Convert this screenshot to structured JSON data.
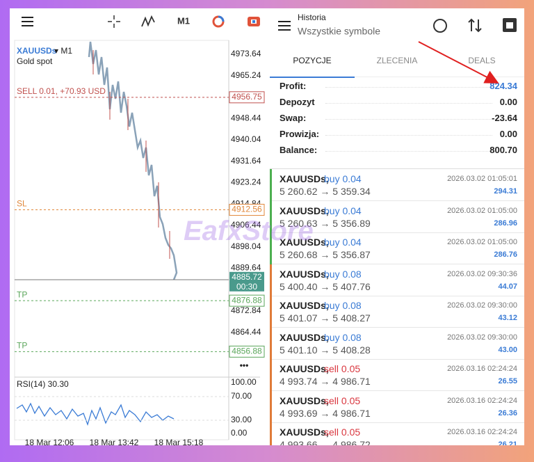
{
  "chart_panel": {
    "toolbar_timeframe": "M1",
    "symbol": "XAUUSDs",
    "timeframe": "▾ M1",
    "description": "Gold spot",
    "price_labels": [
      "4973.64",
      "4965.24",
      "4948.44",
      "4940.04",
      "4931.64",
      "4923.24",
      "4914.84",
      "4906.44",
      "4898.04",
      "4889.64",
      "4872.84",
      "4864.44"
    ],
    "order_lines": [
      {
        "label": "SELL 0.01, +70.93 USD",
        "price": "4956.75",
        "color": "#c0504d"
      },
      {
        "label": "SL",
        "price": "4912.56",
        "color": "#e0873a"
      },
      {
        "label": "TP",
        "price": "4876.88",
        "color": "#5aa65a"
      },
      {
        "label": "TP",
        "price": "4856.88",
        "color": "#5aa65a"
      }
    ],
    "current_price": "4885.72",
    "countdown": "00:30",
    "more": "•••",
    "rsi": {
      "label": "RSI(14) 30.30",
      "levels": [
        "100.00",
        "70.00",
        "30.00",
        "0.00"
      ]
    },
    "time_labels": [
      "18 Mar 12:06",
      "18 Mar 13:42",
      "18 Mar 15:18"
    ]
  },
  "history_panel": {
    "title": "Historia",
    "subtitle": "Wszystkie symbole",
    "tabs": [
      "POZYCJE",
      "ZLECENIA",
      "DEALS"
    ],
    "summary": [
      {
        "label": "Profit:",
        "value": "824.34"
      },
      {
        "label": "Depozyt",
        "value": "0.00"
      },
      {
        "label": "Swap:",
        "value": "-23.64"
      },
      {
        "label": "Prowizja:",
        "value": "0.00"
      },
      {
        "label": "Balance:",
        "value": "800.70"
      }
    ],
    "deals": [
      {
        "symbol": "XAUUSDs,",
        "side": "buy 0.04",
        "color": "#3a7bd5",
        "bar": "#4caf50",
        "prices": "5 260.62 → 5 359.34",
        "time": "2026.03.02 01:05:01",
        "profit": "294.31"
      },
      {
        "symbol": "XAUUSDs,",
        "side": "buy 0.04",
        "color": "#3a7bd5",
        "bar": "#4caf50",
        "prices": "5 260.63 → 5 356.89",
        "time": "2026.03.02 01:05:00",
        "profit": "286.96"
      },
      {
        "symbol": "XAUUSDs,",
        "side": "buy 0.04",
        "color": "#3a7bd5",
        "bar": "#4caf50",
        "prices": "5 260.68 → 5 356.87",
        "time": "2026.03.02 01:05:00",
        "profit": "286.76"
      },
      {
        "symbol": "XAUUSDs,",
        "side": "buy 0.08",
        "color": "#3a7bd5",
        "bar": "#e07b39",
        "prices": "5 400.40 → 5 407.76",
        "time": "2026.03.02 09:30:36",
        "profit": "44.07"
      },
      {
        "symbol": "XAUUSDs,",
        "side": "buy 0.08",
        "color": "#3a7bd5",
        "bar": "#e07b39",
        "prices": "5 401.07 → 5 408.27",
        "time": "2026.03.02 09:30:00",
        "profit": "43.12"
      },
      {
        "symbol": "XAUUSDs,",
        "side": "buy 0.08",
        "color": "#3a7bd5",
        "bar": "#e07b39",
        "prices": "5 401.10 → 5 408.28",
        "time": "2026.03.02 09:30:00",
        "profit": "43.00"
      },
      {
        "symbol": "XAUUSDs,",
        "side": "sell 0.05",
        "color": "#d9363e",
        "bar": "#e07b39",
        "prices": "4 993.74 → 4 986.71",
        "time": "2026.03.16 02:24:24",
        "profit": "26.55"
      },
      {
        "symbol": "XAUUSDs,",
        "side": "sell 0.05",
        "color": "#d9363e",
        "bar": "#e07b39",
        "prices": "4 993.69 → 4 986.71",
        "time": "2026.03.16 02:24:24",
        "profit": "26.36"
      },
      {
        "symbol": "XAUUSDs,",
        "side": "sell 0.05",
        "color": "#d9363e",
        "bar": "#e07b39",
        "prices": "4 993.66 → 4 986.72",
        "time": "2026.03.16 02:24:24",
        "profit": "26.21"
      }
    ]
  },
  "watermark": "EafxStore"
}
